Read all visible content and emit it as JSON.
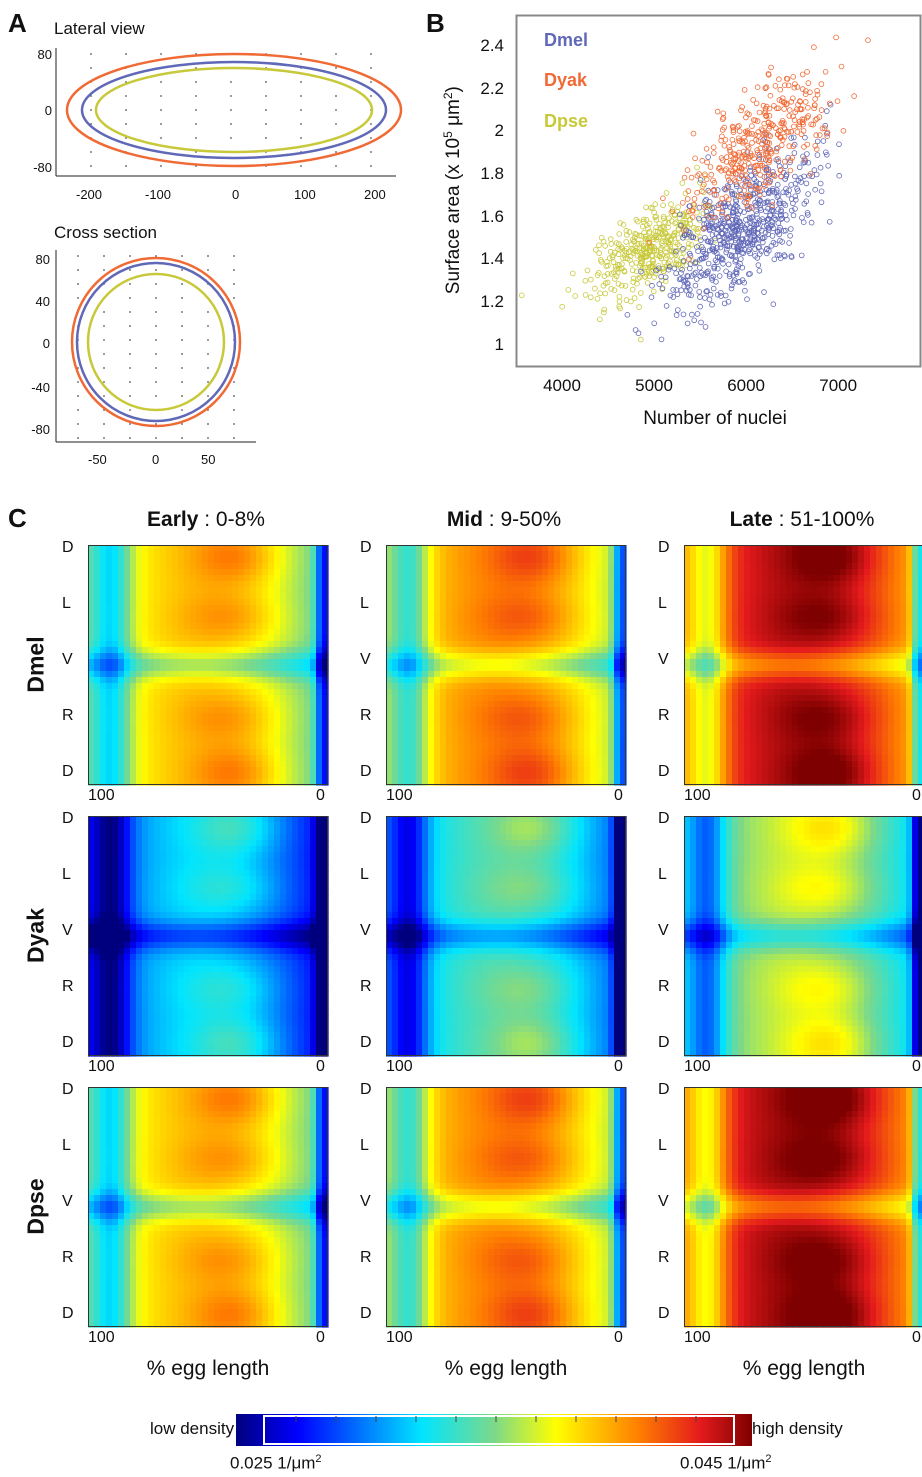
{
  "panel_a": {
    "letter": "A",
    "lateral": {
      "title": "Lateral view",
      "yticks": [
        "80",
        "0",
        "-80"
      ],
      "xticks": [
        "-200",
        "-100",
        "0",
        "100",
        "200"
      ]
    },
    "cross": {
      "title": "Cross section",
      "yticks": [
        "80",
        "40",
        "0",
        "-40",
        "-80"
      ],
      "xticks": [
        "-50",
        "0",
        "50"
      ]
    },
    "colors": {
      "Dmel": "#6068b8",
      "Dyak": "#f06a35",
      "Dpse": "#c8c93a"
    }
  },
  "panel_b": {
    "letter": "B",
    "chart_data": {
      "type": "scatter",
      "xlabel": "Number of nuclei",
      "ylabel": "Surface area (x 10",
      "ylabel_sup": "5",
      "ylabel_unit": " μm",
      "ylabel_unit_sup": "2",
      "ylabel_end": ")",
      "xticks": [
        "4000",
        "5000",
        "6000",
        "7000"
      ],
      "yticks": [
        "1",
        "1.2",
        "1.4",
        "1.6",
        "1.8",
        "2",
        "2.2",
        "2.4"
      ],
      "xlim": [
        3500,
        7900
      ],
      "ylim": [
        0.9,
        2.55
      ],
      "series": [
        {
          "name": "Dmel",
          "color": "#6068b8",
          "center": [
            5950,
            1.55
          ],
          "spread": [
            380,
            0.18
          ],
          "count": 650
        },
        {
          "name": "Dyak",
          "color": "#f06a35",
          "center": [
            6150,
            1.95
          ],
          "spread": [
            380,
            0.17
          ],
          "count": 380
        },
        {
          "name": "Dpse",
          "color": "#c8c93a",
          "center": [
            4950,
            1.45
          ],
          "spread": [
            330,
            0.12
          ],
          "count": 380
        }
      ]
    }
  },
  "panel_c": {
    "letter": "C",
    "columns": [
      {
        "bold": "Early",
        "rest": " : 0-8%"
      },
      {
        "bold": "Mid",
        "rest": " : 9-50%"
      },
      {
        "bold": "Late",
        "rest": " : 51-100%"
      }
    ],
    "rows": [
      "Dmel",
      "Dyak",
      "Dpse"
    ],
    "ylabels": [
      "D",
      "L",
      "V",
      "R",
      "D"
    ],
    "xtick_left": "100",
    "xtick_right": "0",
    "xlabel": "% egg length",
    "colorbar": {
      "low_label": "low density",
      "high_label": "high density",
      "min_value": "0.025 1/μm",
      "max_value": "0.045 1/μm",
      "unit_sup": "2"
    }
  }
}
